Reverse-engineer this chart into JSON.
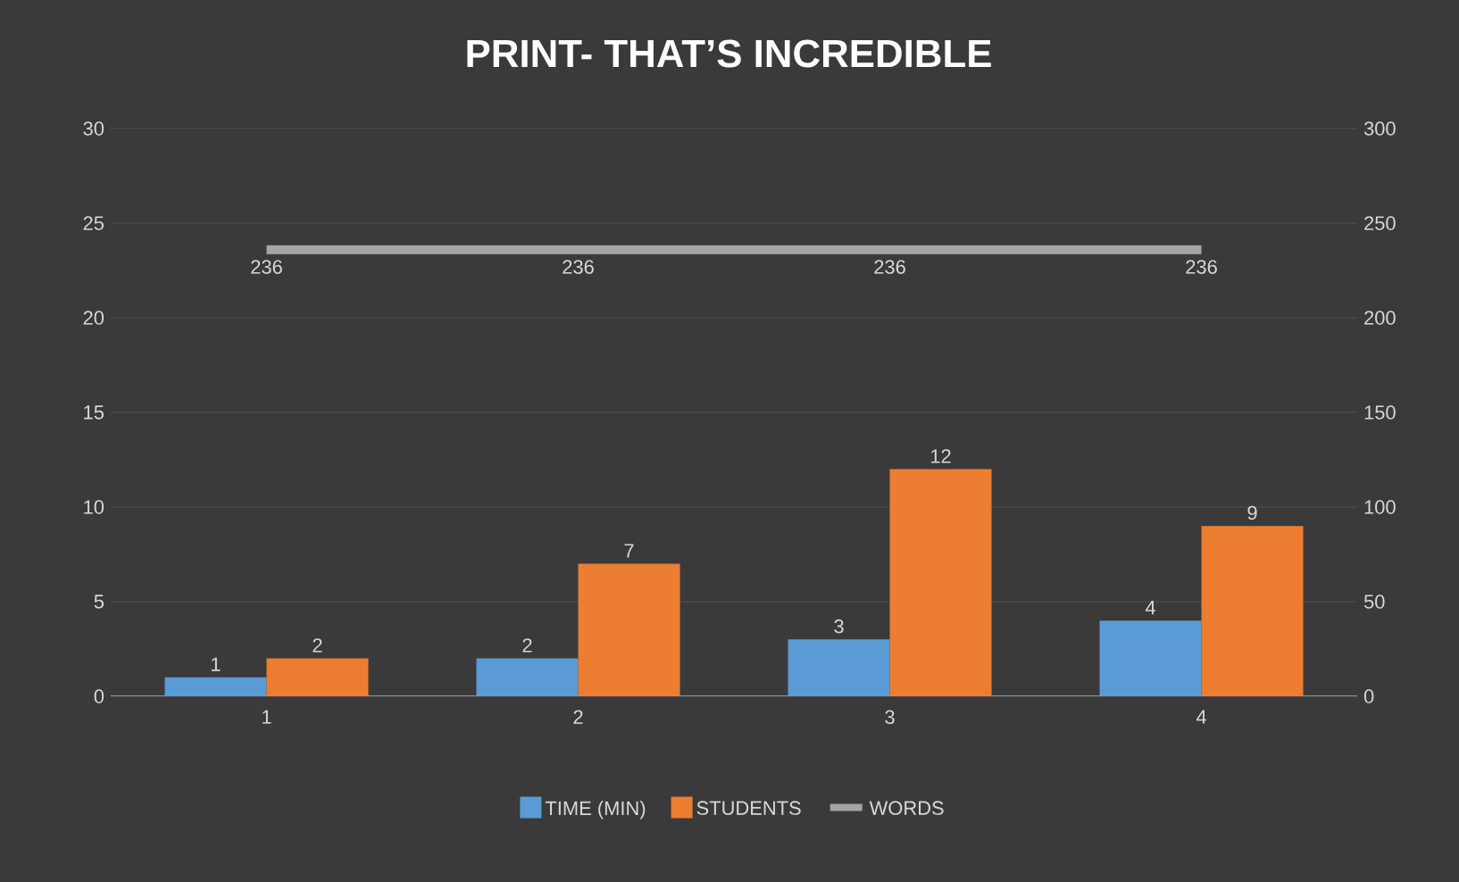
{
  "chart_data": {
    "type": "bar",
    "title": "PRINT- THAT’S INCREDIBLE",
    "categories": [
      "1",
      "2",
      "3",
      "4"
    ],
    "series": [
      {
        "name": "TIME (MIN)",
        "color": "#5b9bd5",
        "values": [
          1,
          2,
          3,
          4
        ]
      },
      {
        "name": "STUDENTS",
        "color": "#ed7d31",
        "values": [
          2,
          7,
          12,
          9
        ]
      },
      {
        "name": "WORDS",
        "type": "line",
        "axis": "y2",
        "color": "#a5a5a5",
        "values": [
          236,
          236,
          236,
          236
        ]
      }
    ],
    "ylim": [
      0,
      30
    ],
    "yticks": [
      0,
      5,
      10,
      15,
      20,
      25,
      30
    ],
    "y2lim": [
      0,
      300
    ],
    "y2ticks": [
      0,
      50,
      100,
      150,
      200,
      250,
      300
    ],
    "grid": "y",
    "legend": "bottom",
    "data_labels": true
  }
}
